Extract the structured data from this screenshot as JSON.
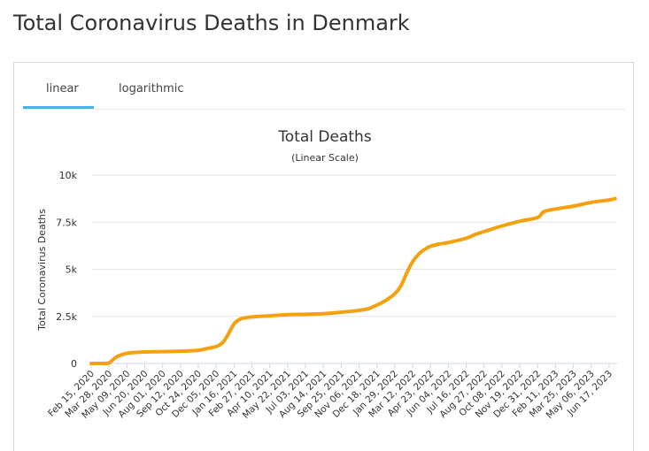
{
  "page": {
    "title": "Total Coronavirus Deaths in Denmark"
  },
  "tabs": [
    {
      "label": "linear",
      "active": true
    },
    {
      "label": "logarithmic",
      "active": false
    }
  ],
  "colors": {
    "line": "#f5a00e",
    "tab_active": "#43b4e6",
    "grid": "#e6e6e6",
    "axis": "#ccd6eb"
  },
  "chart_data": {
    "type": "line",
    "title": "Total Deaths",
    "subtitle": "(Linear Scale)",
    "xlabel": "",
    "ylabel": "Total Coronavirus Deaths",
    "ylim": [
      0,
      10000
    ],
    "y_ticks": [
      0,
      2500,
      5000,
      7500,
      10000
    ],
    "y_tick_labels": [
      "0",
      "2.5k",
      "5k",
      "7.5k",
      "10k"
    ],
    "x_tick_labels": [
      "Feb 15, 2020",
      "Mar 28, 2020",
      "May 09, 2020",
      "Jun 20, 2020",
      "Aug 01, 2020",
      "Sep 12, 2020",
      "Oct 24, 2020",
      "Dec 05, 2020",
      "Jan 16, 2021",
      "Feb 27, 2021",
      "Apr 10, 2021",
      "May 22, 2021",
      "Jul 03, 2021",
      "Aug 14, 2021",
      "Sep 25, 2021",
      "Nov 06, 2021",
      "Dec 18, 2021",
      "Jan 29, 2022",
      "Mar 12, 2022",
      "Apr 23, 2022",
      "Jun 04, 2022",
      "Jul 16, 2022",
      "Aug 27, 2022",
      "Oct 08, 2022",
      "Nov 19, 2022",
      "Dec 31, 2022",
      "Feb 11, 2023",
      "Mar 25, 2023",
      "May 06, 2023",
      "Jun 17, 2023"
    ],
    "grid": true,
    "legend": "none",
    "series": [
      {
        "x": [
          "Feb 15, 2020",
          "Mar 14, 2020",
          "Mar 28, 2020",
          "Apr 15, 2020",
          "May 09, 2020",
          "Jun 01, 2020",
          "Jun 20, 2020",
          "Aug 01, 2020",
          "Sep 12, 2020",
          "Oct 24, 2020",
          "Nov 15, 2020",
          "Dec 05, 2020",
          "Dec 20, 2020",
          "Jan 01, 2021",
          "Jan 16, 2021",
          "Jan 30, 2021",
          "Feb 13, 2021",
          "Feb 27, 2021",
          "Apr 10, 2021",
          "May 22, 2021",
          "Jul 03, 2021",
          "Aug 14, 2021",
          "Sep 25, 2021",
          "Nov 06, 2021",
          "Nov 27, 2021",
          "Dec 18, 2021",
          "Jan 08, 2022",
          "Jan 29, 2022",
          "Feb 12, 2022",
          "Feb 26, 2022",
          "Mar 12, 2022",
          "Mar 26, 2022",
          "Apr 09, 2022",
          "Apr 23, 2022",
          "May 14, 2022",
          "Jun 04, 2022",
          "Jul 16, 2022",
          "Aug 06, 2022",
          "Aug 27, 2022",
          "Oct 08, 2022",
          "Nov 19, 2022",
          "Dec 31, 2022",
          "Jan 14, 2023",
          "Feb 11, 2023",
          "Mar 25, 2023",
          "May 06, 2023",
          "Jun 17, 2023",
          "Jul 01, 2023"
        ],
        "values": [
          0,
          0,
          30,
          350,
          540,
          590,
          610,
          630,
          650,
          700,
          800,
          900,
          1100,
          1500,
          2100,
          2350,
          2430,
          2470,
          2530,
          2590,
          2610,
          2640,
          2720,
          2820,
          2900,
          3100,
          3350,
          3700,
          4100,
          4800,
          5400,
          5800,
          6050,
          6220,
          6340,
          6420,
          6650,
          6850,
          7000,
          7300,
          7550,
          7750,
          8050,
          8200,
          8350,
          8550,
          8680,
          8750
        ]
      }
    ]
  }
}
